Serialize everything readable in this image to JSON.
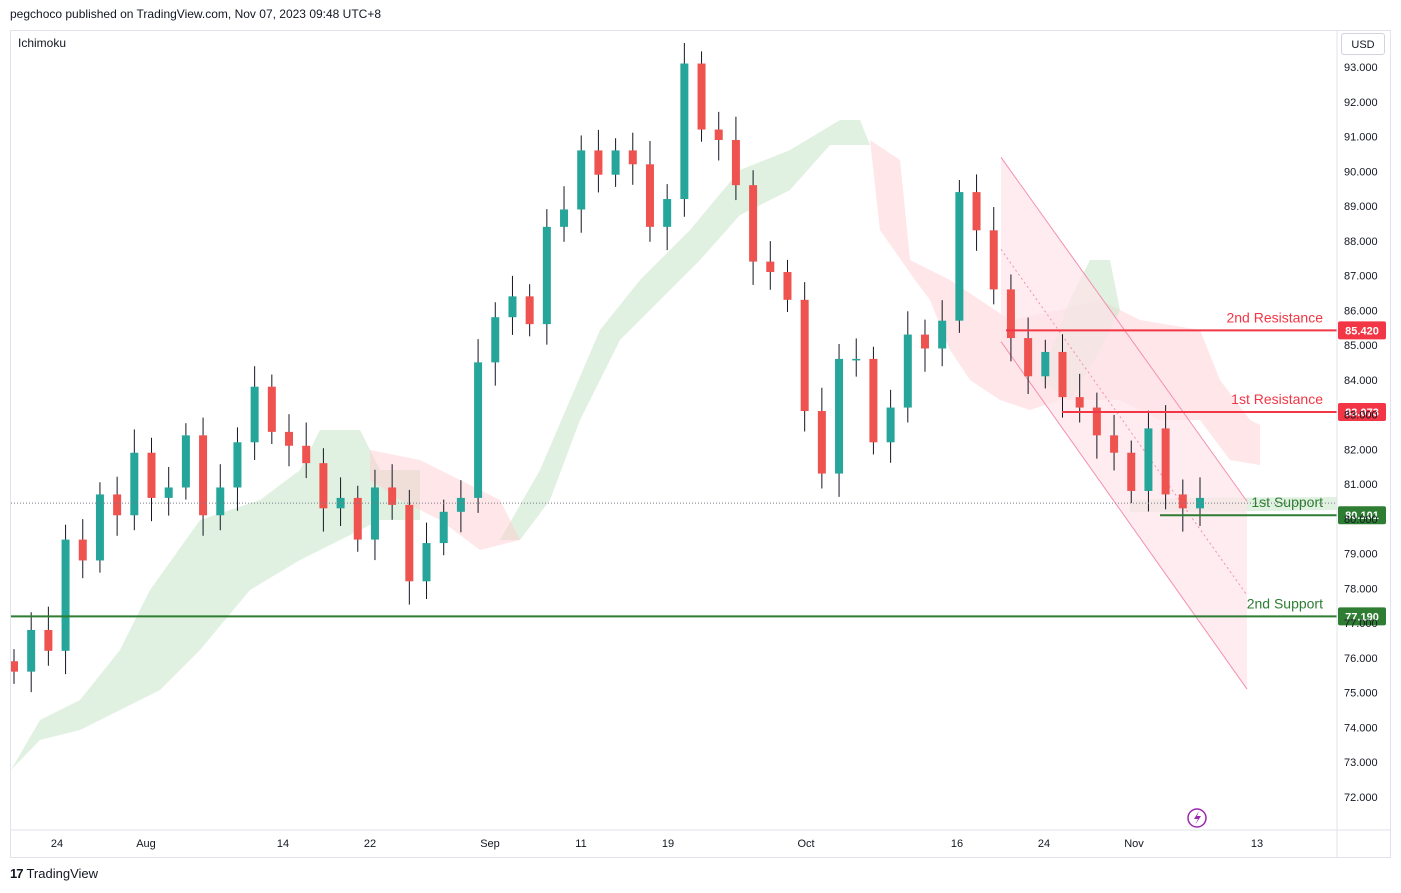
{
  "header": {
    "publisher_line": "pegchoco published on TradingView.com, Nov 07, 2023 09:48 UTC+8"
  },
  "indicator": {
    "label": "Ichimoku"
  },
  "currency": {
    "label": "USD"
  },
  "footer": {
    "brand": "TradingView",
    "logo": "17"
  },
  "colors": {
    "bull": "#26a69a",
    "bear": "#ef5350",
    "resistance": "#f23645",
    "support": "#2e7d32",
    "cloud_green": "#c8e6c9",
    "cloud_red": "#ffcdd2",
    "channel": "#f48fb1"
  },
  "chart_data": {
    "type": "candlestick",
    "title": "",
    "ylim": [
      71.3,
      94.0
    ],
    "y_ticks": [
      "93.000",
      "92.000",
      "91.000",
      "90.000",
      "89.000",
      "88.000",
      "87.000",
      "86.000",
      "85.000",
      "84.000",
      "83.000",
      "82.000",
      "81.000",
      "80.000",
      "79.000",
      "78.000",
      "77.000",
      "76.000",
      "75.000",
      "74.000",
      "73.000",
      "72.000"
    ],
    "x_ticks": [
      "24",
      "Aug",
      "14",
      "22",
      "Sep",
      "11",
      "19",
      "Oct",
      "16",
      "24",
      "Nov",
      "13"
    ],
    "series": [
      {
        "name": "",
        "values": [
          75.6,
          76.8,
          76.2,
          79.4,
          78.8,
          80.7,
          80.1,
          81.9,
          80.6,
          80.9,
          82.4,
          80.1,
          80.9,
          82.2,
          83.8,
          82.5,
          82.1,
          81.6,
          80.3,
          80.6,
          79.4,
          80.9,
          80.4,
          78.2,
          79.3,
          80.2,
          80.6,
          84.5,
          85.8,
          86.4,
          85.6,
          88.4,
          88.9,
          90.6,
          89.9,
          90.6,
          90.2,
          88.4,
          89.2,
          93.1,
          91.2,
          90.9,
          89.6,
          87.4,
          87.1,
          86.3,
          83.1,
          81.3,
          84.6,
          84.6,
          82.2,
          83.2,
          85.3,
          84.9,
          85.7,
          89.4,
          88.3,
          86.6,
          85.2,
          84.1,
          84.8,
          83.5,
          83.2,
          82.4,
          81.9,
          80.8,
          82.6,
          80.7,
          80.3,
          80.6
        ]
      }
    ],
    "levels": [
      {
        "label": "2nd Resistance",
        "value": "85.420"
      },
      {
        "label": "1st Resistance",
        "value": "83.073"
      },
      {
        "label": "1st Support",
        "value": "80.101"
      },
      {
        "label": "2nd Support",
        "value": "77.190"
      }
    ],
    "current_price": 80.45,
    "channel": {
      "upper": [
        [
          1001,
          90.4
        ],
        [
          1247,
          80.5
        ]
      ],
      "lower": [
        [
          1001,
          85.1
        ],
        [
          1247,
          75.1
        ]
      ]
    }
  }
}
